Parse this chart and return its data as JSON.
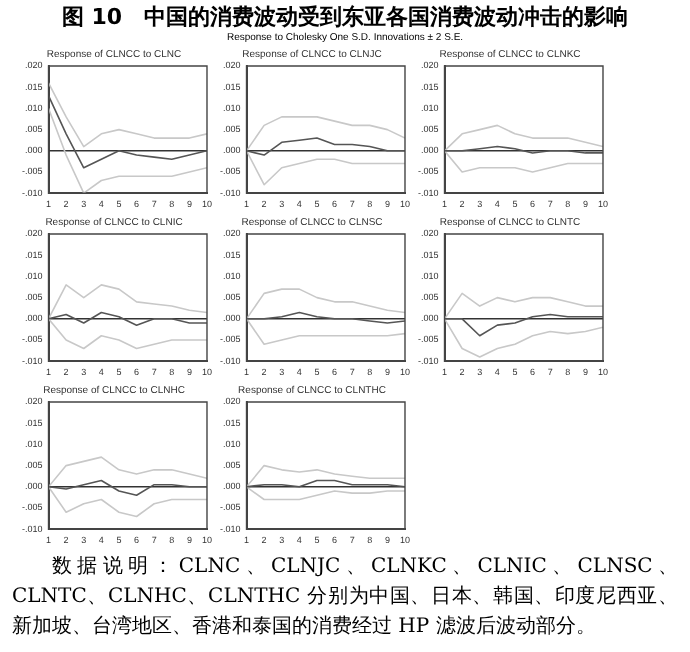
{
  "chart_data": [
    {
      "type": "line",
      "title": "Response of CLNCC to CLNC",
      "annotations": [
        "图 10　中国的消费波动受到东亚各国消费波动冲击的影响",
        "Response to Cholesky One S.D. Innovations ± 2 S.E."
      ],
      "x": [
        1,
        2,
        3,
        4,
        5,
        6,
        7,
        8,
        9,
        10
      ],
      "xlim": [
        1,
        10
      ],
      "xticks": [
        1,
        2,
        3,
        4,
        5,
        6,
        7,
        8,
        9,
        10
      ],
      "ylim": [
        -0.01,
        0.02
      ],
      "yticks": [
        {
          "value": -0.01,
          "label": "-.010"
        },
        {
          "value": -0.005,
          "label": "-.005"
        },
        {
          "value": 0,
          "label": ".000"
        },
        {
          "value": 0.005,
          "label": ".005"
        },
        {
          "value": 0.01,
          "label": ".010"
        },
        {
          "value": 0.015,
          "label": ".015"
        },
        {
          "value": 0.02,
          "label": ".020"
        }
      ],
      "ref_lines": [
        {
          "axis": "y",
          "value": 0,
          "color": "#333333"
        }
      ],
      "series": [
        {
          "color": "#555555",
          "values": [
            0.013,
            0.004,
            -0.004,
            -0.002,
            0,
            -0.001,
            -0.0015,
            -0.002,
            -0.001,
            0
          ]
        },
        {
          "color": "#c8c8c8",
          "values": [
            0.016,
            0.008,
            0.001,
            0.004,
            0.005,
            0.004,
            0.003,
            0.003,
            0.003,
            0.004
          ]
        },
        {
          "color": "#c8c8c8",
          "values": [
            0.01,
            -0.001,
            -0.01,
            -0.007,
            -0.006,
            -0.006,
            -0.006,
            -0.006,
            -0.005,
            -0.004
          ]
        }
      ]
    },
    {
      "type": "line",
      "title": "Response of CLNCC to CLNJC",
      "x": [
        1,
        2,
        3,
        4,
        5,
        6,
        7,
        8,
        9,
        10
      ],
      "xlim": [
        1,
        10
      ],
      "xticks": [
        1,
        2,
        3,
        4,
        5,
        6,
        7,
        8,
        9,
        10
      ],
      "ylim": [
        -0.01,
        0.02
      ],
      "yticks": [
        {
          "value": -0.01,
          "label": "-.010"
        },
        {
          "value": -0.005,
          "label": "-.005"
        },
        {
          "value": 0,
          "label": ".000"
        },
        {
          "value": 0.005,
          "label": ".005"
        },
        {
          "value": 0.01,
          "label": ".010"
        },
        {
          "value": 0.015,
          "label": ".015"
        },
        {
          "value": 0.02,
          "label": ".020"
        }
      ],
      "ref_lines": [
        {
          "axis": "y",
          "value": 0,
          "color": "#333333"
        }
      ],
      "series": [
        {
          "color": "#555555",
          "values": [
            0,
            -0.001,
            0.002,
            0.0025,
            0.003,
            0.0015,
            0.0015,
            0.001,
            0,
            0
          ]
        },
        {
          "color": "#c8c8c8",
          "values": [
            0,
            0.006,
            0.008,
            0.008,
            0.008,
            0.007,
            0.006,
            0.006,
            0.005,
            0.003
          ]
        },
        {
          "color": "#c8c8c8",
          "values": [
            0,
            -0.008,
            -0.004,
            -0.003,
            -0.002,
            -0.002,
            -0.003,
            -0.003,
            -0.003,
            -0.003
          ]
        }
      ]
    },
    {
      "type": "line",
      "title": "Response of CLNCC to CLNKC",
      "x": [
        1,
        2,
        3,
        4,
        5,
        6,
        7,
        8,
        9,
        10
      ],
      "xlim": [
        1,
        10
      ],
      "xticks": [
        1,
        2,
        3,
        4,
        5,
        6,
        7,
        8,
        9,
        10
      ],
      "ylim": [
        -0.01,
        0.02
      ],
      "yticks": [
        {
          "value": -0.01,
          "label": "-.010"
        },
        {
          "value": -0.005,
          "label": "-.005"
        },
        {
          "value": 0,
          "label": ".000"
        },
        {
          "value": 0.005,
          "label": ".005"
        },
        {
          "value": 0.01,
          "label": ".010"
        },
        {
          "value": 0.015,
          "label": ".015"
        },
        {
          "value": 0.02,
          "label": ".020"
        }
      ],
      "ref_lines": [
        {
          "axis": "y",
          "value": 0,
          "color": "#333333"
        }
      ],
      "series": [
        {
          "color": "#555555",
          "values": [
            0,
            0,
            0.0005,
            0.001,
            0.0005,
            -0.0005,
            0,
            0,
            -0.0005,
            -0.0005
          ]
        },
        {
          "color": "#c8c8c8",
          "values": [
            0,
            0.004,
            0.005,
            0.006,
            0.004,
            0.003,
            0.003,
            0.003,
            0.002,
            0.001
          ]
        },
        {
          "color": "#c8c8c8",
          "values": [
            0,
            -0.005,
            -0.004,
            -0.004,
            -0.004,
            -0.005,
            -0.004,
            -0.003,
            -0.003,
            -0.003
          ]
        }
      ]
    },
    {
      "type": "line",
      "title": "Response of CLNCC to CLNIC",
      "x": [
        1,
        2,
        3,
        4,
        5,
        6,
        7,
        8,
        9,
        10
      ],
      "xlim": [
        1,
        10
      ],
      "xticks": [
        1,
        2,
        3,
        4,
        5,
        6,
        7,
        8,
        9,
        10
      ],
      "ylim": [
        -0.01,
        0.02
      ],
      "yticks": [
        {
          "value": -0.01,
          "label": "-.010"
        },
        {
          "value": -0.005,
          "label": "-.005"
        },
        {
          "value": 0,
          "label": ".000"
        },
        {
          "value": 0.005,
          "label": ".005"
        },
        {
          "value": 0.01,
          "label": ".010"
        },
        {
          "value": 0.015,
          "label": ".015"
        },
        {
          "value": 0.02,
          "label": ".020"
        }
      ],
      "ref_lines": [
        {
          "axis": "y",
          "value": 0,
          "color": "#333333"
        }
      ],
      "series": [
        {
          "color": "#555555",
          "values": [
            0,
            0.001,
            -0.001,
            0.0015,
            0.0005,
            -0.0015,
            0,
            0,
            -0.001,
            -0.001
          ]
        },
        {
          "color": "#c8c8c8",
          "values": [
            0,
            0.008,
            0.005,
            0.008,
            0.007,
            0.004,
            0.0035,
            0.003,
            0.002,
            0.0015
          ]
        },
        {
          "color": "#c8c8c8",
          "values": [
            0,
            -0.005,
            -0.007,
            -0.004,
            -0.005,
            -0.007,
            -0.006,
            -0.005,
            -0.005,
            -0.005
          ]
        }
      ]
    },
    {
      "type": "line",
      "title": "Response of CLNCC to CLNSC",
      "x": [
        1,
        2,
        3,
        4,
        5,
        6,
        7,
        8,
        9,
        10
      ],
      "xlim": [
        1,
        10
      ],
      "xticks": [
        1,
        2,
        3,
        4,
        5,
        6,
        7,
        8,
        9,
        10
      ],
      "ylim": [
        -0.01,
        0.02
      ],
      "yticks": [
        {
          "value": -0.01,
          "label": "-.010"
        },
        {
          "value": -0.005,
          "label": "-.005"
        },
        {
          "value": 0,
          "label": ".000"
        },
        {
          "value": 0.005,
          "label": ".005"
        },
        {
          "value": 0.01,
          "label": ".010"
        },
        {
          "value": 0.015,
          "label": ".015"
        },
        {
          "value": 0.02,
          "label": ".020"
        }
      ],
      "ref_lines": [
        {
          "axis": "y",
          "value": 0,
          "color": "#333333"
        }
      ],
      "series": [
        {
          "color": "#555555",
          "values": [
            0,
            0,
            0.0005,
            0.0015,
            0.0005,
            0,
            0,
            -0.0005,
            -0.001,
            -0.0005
          ]
        },
        {
          "color": "#c8c8c8",
          "values": [
            0,
            0.006,
            0.007,
            0.007,
            0.005,
            0.004,
            0.004,
            0.003,
            0.002,
            0.0015
          ]
        },
        {
          "color": "#c8c8c8",
          "values": [
            0,
            -0.006,
            -0.005,
            -0.004,
            -0.004,
            -0.004,
            -0.004,
            -0.004,
            -0.004,
            -0.0035
          ]
        }
      ]
    },
    {
      "type": "line",
      "title": "Response of CLNCC to CLNTC",
      "x": [
        1,
        2,
        3,
        4,
        5,
        6,
        7,
        8,
        9,
        10
      ],
      "xlim": [
        1,
        10
      ],
      "xticks": [
        1,
        2,
        3,
        4,
        5,
        6,
        7,
        8,
        9,
        10
      ],
      "ylim": [
        -0.01,
        0.02
      ],
      "yticks": [
        {
          "value": -0.01,
          "label": "-.010"
        },
        {
          "value": -0.005,
          "label": "-.005"
        },
        {
          "value": 0,
          "label": ".000"
        },
        {
          "value": 0.005,
          "label": ".005"
        },
        {
          "value": 0.01,
          "label": ".010"
        },
        {
          "value": 0.015,
          "label": ".015"
        },
        {
          "value": 0.02,
          "label": ".020"
        }
      ],
      "ref_lines": [
        {
          "axis": "y",
          "value": 0,
          "color": "#333333"
        }
      ],
      "series": [
        {
          "color": "#555555",
          "values": [
            0,
            0,
            -0.004,
            -0.0015,
            -0.001,
            0.0005,
            0.001,
            0.0005,
            0.0005,
            0.0005
          ]
        },
        {
          "color": "#c8c8c8",
          "values": [
            0,
            0.006,
            0.003,
            0.005,
            0.004,
            0.005,
            0.005,
            0.004,
            0.003,
            0.003
          ]
        },
        {
          "color": "#c8c8c8",
          "values": [
            0,
            -0.007,
            -0.009,
            -0.007,
            -0.006,
            -0.004,
            -0.003,
            -0.0035,
            -0.003,
            -0.002
          ]
        }
      ]
    },
    {
      "type": "line",
      "title": "Response of CLNCC to CLNHC",
      "x": [
        1,
        2,
        3,
        4,
        5,
        6,
        7,
        8,
        9,
        10
      ],
      "xlim": [
        1,
        10
      ],
      "xticks": [
        1,
        2,
        3,
        4,
        5,
        6,
        7,
        8,
        9,
        10
      ],
      "ylim": [
        -0.01,
        0.02
      ],
      "yticks": [
        {
          "value": -0.01,
          "label": "-.010"
        },
        {
          "value": -0.005,
          "label": "-.005"
        },
        {
          "value": 0,
          "label": ".000"
        },
        {
          "value": 0.005,
          "label": ".005"
        },
        {
          "value": 0.01,
          "label": ".010"
        },
        {
          "value": 0.015,
          "label": ".015"
        },
        {
          "value": 0.02,
          "label": ".020"
        }
      ],
      "ref_lines": [
        {
          "axis": "y",
          "value": 0,
          "color": "#333333"
        }
      ],
      "series": [
        {
          "color": "#555555",
          "values": [
            0,
            -0.0005,
            0.0005,
            0.0015,
            -0.001,
            -0.002,
            0.0005,
            0.0005,
            0,
            0
          ]
        },
        {
          "color": "#c8c8c8",
          "values": [
            0,
            0.005,
            0.006,
            0.007,
            0.004,
            0.003,
            0.004,
            0.004,
            0.003,
            0.002
          ]
        },
        {
          "color": "#c8c8c8",
          "values": [
            0,
            -0.006,
            -0.004,
            -0.003,
            -0.006,
            -0.007,
            -0.004,
            -0.003,
            -0.003,
            -0.003
          ]
        }
      ]
    },
    {
      "type": "line",
      "title": "Response of CLNCC to CLNTHC",
      "annotations": [
        "数据说明：CLNC、CLNJC、CLNKC、CLNIC、CLNSC、CLNTC、CLNHC、CLNTHC 分别为中国、日本、韩国、印度尼西亚、新加坡、台湾地区、香港和泰国的消费经过 HP 滤波后波动部分。"
      ],
      "x": [
        1,
        2,
        3,
        4,
        5,
        6,
        7,
        8,
        9,
        10
      ],
      "xlim": [
        1,
        10
      ],
      "xticks": [
        1,
        2,
        3,
        4,
        5,
        6,
        7,
        8,
        9,
        10
      ],
      "ylim": [
        -0.01,
        0.02
      ],
      "yticks": [
        {
          "value": -0.01,
          "label": "-.010"
        },
        {
          "value": -0.005,
          "label": "-.005"
        },
        {
          "value": 0,
          "label": ".000"
        },
        {
          "value": 0.005,
          "label": ".005"
        },
        {
          "value": 0.01,
          "label": ".010"
        },
        {
          "value": 0.015,
          "label": ".015"
        },
        {
          "value": 0.02,
          "label": ".020"
        }
      ],
      "ref_lines": [
        {
          "axis": "y",
          "value": 0,
          "color": "#333333"
        }
      ],
      "series": [
        {
          "color": "#555555",
          "values": [
            0,
            0.0005,
            0.0005,
            0,
            0.0015,
            0.0015,
            0.0005,
            0.0005,
            0.0005,
            0
          ]
        },
        {
          "color": "#c8c8c8",
          "values": [
            0,
            0.005,
            0.004,
            0.0035,
            0.004,
            0.003,
            0.0025,
            0.002,
            0.002,
            0.002
          ]
        },
        {
          "color": "#c8c8c8",
          "values": [
            0,
            -0.003,
            -0.003,
            -0.003,
            -0.002,
            -0.001,
            -0.0015,
            -0.0015,
            -0.001,
            -0.001
          ]
        }
      ]
    }
  ]
}
